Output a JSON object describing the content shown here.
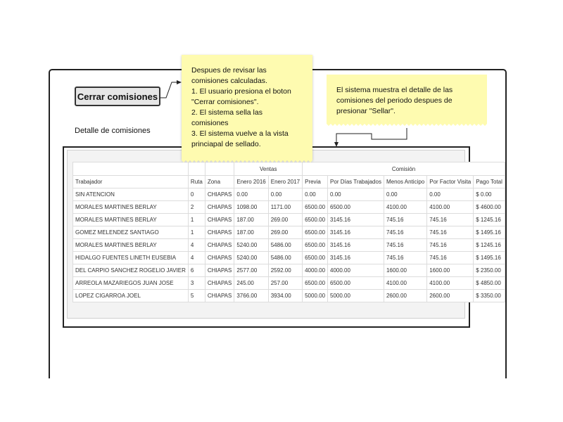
{
  "button": {
    "label": "Cerrar comisiones"
  },
  "section": {
    "title": "Detalle de comisiones"
  },
  "notes": {
    "left": [
      "Despues de revisar las",
      "comisiones calculadas.",
      "1. El usuario presiona el boton",
      "\"Cerrar comisiones\".",
      "2. El sistema sella las",
      "comisiones",
      "3. El sistema vuelve a la vista",
      "princiapal de sellado."
    ],
    "right": [
      "El sistema muestra el detalle de las",
      "comisiones del periodo despues de",
      "presionar \"Sellar\"."
    ]
  },
  "table": {
    "groups": {
      "ventas": "Ventas",
      "comision": "Comisión"
    },
    "headers": [
      "Trabajador",
      "Ruta",
      "Zona",
      "Enero 2016",
      "Enero 2017",
      "Previa",
      "Por Días Trabajados",
      "Menos Anticipo",
      "Por Factor Visita",
      "Pago Total"
    ],
    "rows": [
      [
        "SIN ATENCION",
        "0",
        "CHIAPAS",
        "0.00",
        "0.00",
        "0.00",
        "0.00",
        "0.00",
        "0.00",
        "$ 0.00"
      ],
      [
        "MORALES MARTINES BERLAY",
        "2",
        "CHIAPAS",
        "1098.00",
        "1171.00",
        "6500.00",
        "6500.00",
        "4100.00",
        "4100.00",
        "$ 4600.00"
      ],
      [
        "MORALES MARTINES BERLAY",
        "1",
        "CHIAPAS",
        "187.00",
        "269.00",
        "6500.00",
        "3145.16",
        "745.16",
        "745.16",
        "$ 1245.16"
      ],
      [
        "GOMEZ MELENDEZ SANTIAGO",
        "1",
        "CHIAPAS",
        "187.00",
        "269.00",
        "6500.00",
        "3145.16",
        "745.16",
        "745.16",
        "$ 1495.16"
      ],
      [
        "MORALES MARTINES BERLAY",
        "4",
        "CHIAPAS",
        "5240.00",
        "5486.00",
        "6500.00",
        "3145.16",
        "745.16",
        "745.16",
        "$ 1245.16"
      ],
      [
        "HIDALGO FUENTES LINETH EUSEBIA",
        "4",
        "CHIAPAS",
        "5240.00",
        "5486.00",
        "6500.00",
        "3145.16",
        "745.16",
        "745.16",
        "$ 1495.16"
      ],
      [
        "DEL CARPIO SANCHEZ ROGELIO JAVIER",
        "6",
        "CHIAPAS",
        "2577.00",
        "2592.00",
        "4000.00",
        "4000.00",
        "1600.00",
        "1600.00",
        "$ 2350.00"
      ],
      [
        "ARREOLA MAZARIEGOS JUAN JOSE",
        "3",
        "CHIAPAS",
        "245.00",
        "257.00",
        "6500.00",
        "6500.00",
        "4100.00",
        "4100.00",
        "$ 4850.00"
      ],
      [
        "LOPEZ CIGARROA JOEL",
        "5",
        "CHIAPAS",
        "3766.00",
        "3934.00",
        "5000.00",
        "5000.00",
        "2600.00",
        "2600.00",
        "$ 3350.00"
      ]
    ]
  },
  "colors": {
    "note": "#fefbb0",
    "button_bg": "#e6e6e6",
    "panel_bg": "#f3f3f3"
  }
}
